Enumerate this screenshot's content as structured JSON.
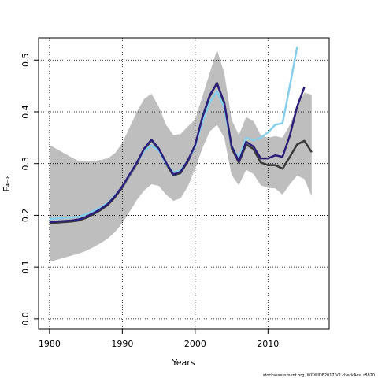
{
  "chart_data": {
    "type": "line",
    "xlabel": "Years",
    "ylabel": "F₄₋₈",
    "footnote": "stockassessment.org, WGWIDE2017.V2 checkAes, r8820",
    "x": [
      1980,
      1981,
      1982,
      1983,
      1984,
      1985,
      1986,
      1987,
      1988,
      1989,
      1990,
      1991,
      1992,
      1993,
      1994,
      1995,
      1996,
      1997,
      1998,
      1999,
      2000,
      2001,
      2002,
      2003,
      2004,
      2005,
      2006,
      2007,
      2008,
      2009,
      2010,
      2011,
      2012,
      2013,
      2014,
      2015,
      2016
    ],
    "band": {
      "color": "#bebebe",
      "upper": [
        0.336,
        0.328,
        0.32,
        0.312,
        0.305,
        0.304,
        0.305,
        0.307,
        0.31,
        0.32,
        0.34,
        0.37,
        0.4,
        0.425,
        0.435,
        0.41,
        0.375,
        0.355,
        0.357,
        0.372,
        0.385,
        0.43,
        0.475,
        0.52,
        0.475,
        0.385,
        0.355,
        0.39,
        0.382,
        0.355,
        0.35,
        0.353,
        0.35,
        0.375,
        0.41,
        0.437,
        0.433
      ],
      "lower": [
        0.11,
        0.114,
        0.118,
        0.122,
        0.126,
        0.131,
        0.138,
        0.146,
        0.155,
        0.168,
        0.185,
        0.207,
        0.23,
        0.248,
        0.26,
        0.257,
        0.24,
        0.228,
        0.233,
        0.256,
        0.29,
        0.33,
        0.362,
        0.375,
        0.35,
        0.278,
        0.258,
        0.288,
        0.28,
        0.258,
        0.253,
        0.252,
        0.24,
        0.26,
        0.277,
        0.27,
        0.237
      ]
    },
    "series": [
      {
        "color": "#3a3a3a",
        "values": [
          0.185,
          0.186,
          0.187,
          0.188,
          0.19,
          0.195,
          0.202,
          0.21,
          0.22,
          0.235,
          0.254,
          0.277,
          0.3,
          0.327,
          0.345,
          0.327,
          0.3,
          0.277,
          0.282,
          0.304,
          0.334,
          0.388,
          0.43,
          0.456,
          0.415,
          0.33,
          0.302,
          0.337,
          0.328,
          0.302,
          0.297,
          0.297,
          0.29,
          0.313,
          0.337,
          0.344,
          0.322
        ]
      },
      {
        "color": "#87ceeb",
        "values": [
          0.193,
          0.194,
          0.195,
          0.196,
          0.197,
          0.202,
          0.208,
          0.215,
          0.224,
          0.238,
          0.256,
          0.278,
          0.302,
          0.325,
          0.335,
          0.325,
          0.3,
          0.283,
          0.287,
          0.306,
          0.333,
          0.38,
          0.418,
          0.44,
          0.408,
          0.333,
          0.31,
          0.35,
          0.345,
          0.35,
          0.36,
          0.375,
          0.378,
          0.45,
          0.525,
          null,
          null
        ]
      },
      {
        "color": "#2b1f7a",
        "values": [
          0.187,
          0.188,
          0.189,
          0.19,
          0.192,
          0.197,
          0.204,
          0.212,
          0.222,
          0.237,
          0.256,
          0.279,
          0.302,
          0.329,
          0.346,
          0.329,
          0.302,
          0.279,
          0.284,
          0.306,
          0.336,
          0.39,
          0.432,
          0.455,
          0.418,
          0.334,
          0.304,
          0.342,
          0.333,
          0.31,
          0.31,
          0.316,
          0.313,
          0.354,
          0.41,
          0.448,
          null
        ]
      }
    ],
    "xlim": [
      1978.5,
      2018.4
    ],
    "ylim": [
      -0.02,
      0.543
    ],
    "xticks": [
      1980,
      1990,
      2000,
      2010
    ],
    "yticks": [
      {
        "value": 0,
        "label": "0.0"
      },
      0.1,
      0.2,
      0.3,
      0.4,
      0.5
    ],
    "grid": true
  }
}
